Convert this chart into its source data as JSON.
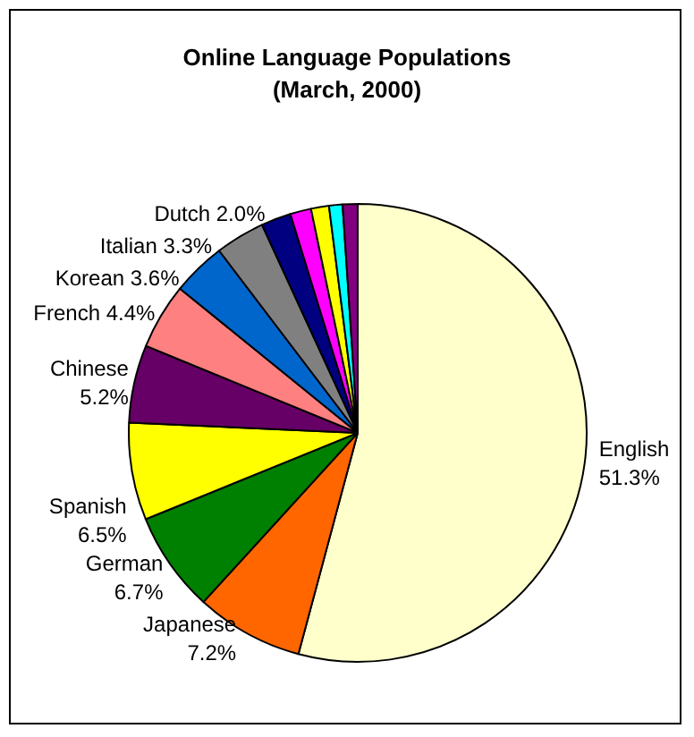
{
  "chart_data": {
    "type": "pie",
    "title": "Online Language Populations\n(March, 2000)",
    "categories": [
      "English",
      "Japanese",
      "German",
      "Spanish",
      "Chinese",
      "French",
      "Korean",
      "Italian",
      "Dutch",
      null,
      null,
      null,
      null
    ],
    "values": [
      51.3,
      7.2,
      6.7,
      6.5,
      5.2,
      4.4,
      3.6,
      3.3,
      2.0,
      1.4,
      1.2,
      0.9,
      1.0
    ],
    "colors": [
      "#ffffcc",
      "#ff6600",
      "#008000",
      "#ffff00",
      "#660066",
      "#ff8080",
      "#0066cc",
      "#808080",
      "#000080",
      "#ff00ff",
      "#ffff00",
      "#00ffff",
      "#800080"
    ],
    "value_labels": [
      "51.3%",
      "7.2%",
      "6.7%",
      "6.5%",
      "5.2%",
      "4.4%",
      "3.6%",
      "3.3%",
      "2.0%",
      null,
      null,
      null,
      null
    ]
  }
}
